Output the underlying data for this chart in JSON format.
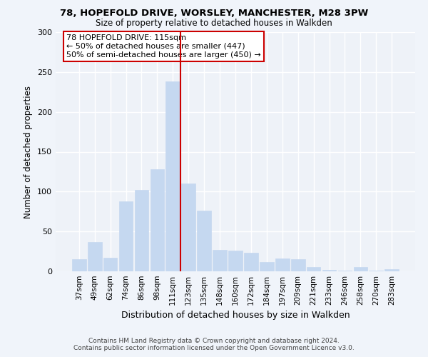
{
  "title1": "78, HOPEFOLD DRIVE, WORSLEY, MANCHESTER, M28 3PW",
  "title2": "Size of property relative to detached houses in Walkden",
  "xlabel": "Distribution of detached houses by size in Walkden",
  "ylabel": "Number of detached properties",
  "footnote1": "Contains HM Land Registry data © Crown copyright and database right 2024.",
  "footnote2": "Contains public sector information licensed under the Open Government Licence v3.0.",
  "categories": [
    "37sqm",
    "49sqm",
    "62sqm",
    "74sqm",
    "86sqm",
    "98sqm",
    "111sqm",
    "123sqm",
    "135sqm",
    "148sqm",
    "160sqm",
    "172sqm",
    "184sqm",
    "197sqm",
    "209sqm",
    "221sqm",
    "233sqm",
    "246sqm",
    "258sqm",
    "270sqm",
    "283sqm"
  ],
  "values": [
    15,
    37,
    17,
    88,
    102,
    128,
    238,
    110,
    76,
    27,
    26,
    23,
    12,
    16,
    15,
    5,
    2,
    1,
    5,
    1,
    3
  ],
  "bar_color": "#c5d8f0",
  "bar_edge_color": "#c5d8f0",
  "vline_x": 6.5,
  "vline_color": "#cc0000",
  "legend_text1": "78 HOPEFOLD DRIVE: 115sqm",
  "legend_text2": "← 50% of detached houses are smaller (447)",
  "legend_text3": "50% of semi-detached houses are larger (450) →",
  "legend_box_color": "#cc0000",
  "ylim": [
    0,
    300
  ],
  "yticks": [
    0,
    50,
    100,
    150,
    200,
    250,
    300
  ],
  "bg_color": "#f0f4fa",
  "plot_bg_color": "#eef2f8",
  "grid_color": "#ffffff"
}
